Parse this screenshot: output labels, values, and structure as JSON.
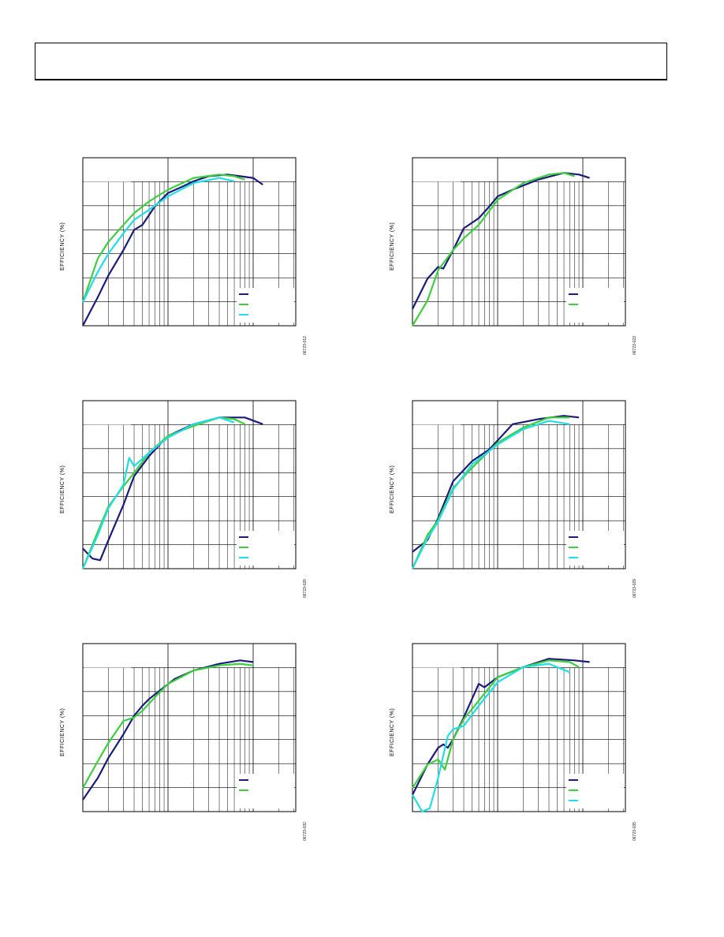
{
  "colors": {
    "navy": "#1c1c7a",
    "green": "#3ecf3e",
    "cyan": "#22dde8"
  },
  "chart_data": [
    {
      "type": "line",
      "x_scale": "log",
      "ylabel": "EFFICIENCY (%)",
      "figure_code": "06723-012",
      "series": [
        {
          "color": "navy",
          "points": [
            [
              1,
              0.0
            ],
            [
              1.5,
              0.17
            ],
            [
              2,
              0.3
            ],
            [
              3,
              0.45
            ],
            [
              4,
              0.57
            ],
            [
              5,
              0.6
            ],
            [
              7,
              0.71
            ],
            [
              10,
              0.79
            ],
            [
              15,
              0.83
            ],
            [
              20,
              0.86
            ],
            [
              30,
              0.89
            ],
            [
              50,
              0.9
            ],
            [
              70,
              0.89
            ],
            [
              100,
              0.88
            ],
            [
              130,
              0.84
            ]
          ]
        },
        {
          "color": "green",
          "points": [
            [
              1,
              0.14
            ],
            [
              1.5,
              0.4
            ],
            [
              2,
              0.5
            ],
            [
              3,
              0.6
            ],
            [
              4,
              0.67
            ],
            [
              6,
              0.74
            ],
            [
              10,
              0.81
            ],
            [
              20,
              0.88
            ],
            [
              40,
              0.9
            ],
            [
              60,
              0.89
            ],
            [
              80,
              0.87
            ]
          ]
        },
        {
          "color": "cyan",
          "points": [
            [
              1,
              0.14
            ],
            [
              1.5,
              0.32
            ],
            [
              2,
              0.43
            ],
            [
              3,
              0.55
            ],
            [
              4,
              0.63
            ],
            [
              6,
              0.69
            ],
            [
              10,
              0.77
            ],
            [
              20,
              0.85
            ],
            [
              40,
              0.88
            ],
            [
              60,
              0.86
            ]
          ]
        }
      ]
    },
    {
      "type": "line",
      "x_scale": "log",
      "ylabel": "EFFICIENCY (%)",
      "figure_code": "06723-023",
      "series": [
        {
          "color": "navy",
          "points": [
            [
              1,
              0.1
            ],
            [
              1.5,
              0.28
            ],
            [
              2,
              0.35
            ],
            [
              2.3,
              0.34
            ],
            [
              3,
              0.45
            ],
            [
              4,
              0.58
            ],
            [
              6,
              0.64
            ],
            [
              8,
              0.71
            ],
            [
              10,
              0.77
            ],
            [
              15,
              0.81
            ],
            [
              30,
              0.87
            ],
            [
              60,
              0.91
            ],
            [
              90,
              0.9
            ],
            [
              120,
              0.88
            ]
          ]
        },
        {
          "color": "green",
          "points": [
            [
              1,
              0.0
            ],
            [
              1.5,
              0.15
            ],
            [
              2,
              0.33
            ],
            [
              3,
              0.45
            ],
            [
              4,
              0.52
            ],
            [
              6,
              0.6
            ],
            [
              10,
              0.75
            ],
            [
              20,
              0.85
            ],
            [
              40,
              0.9
            ],
            [
              60,
              0.91
            ],
            [
              80,
              0.89
            ]
          ]
        }
      ]
    },
    {
      "type": "line",
      "x_scale": "log",
      "ylabel": "EFFICIENCY (%)",
      "figure_code": "06723-026",
      "series": [
        {
          "color": "navy",
          "points": [
            [
              1,
              0.12
            ],
            [
              1.3,
              0.06
            ],
            [
              1.6,
              0.05
            ],
            [
              2,
              0.17
            ],
            [
              3,
              0.38
            ],
            [
              4,
              0.55
            ],
            [
              6,
              0.67
            ],
            [
              10,
              0.79
            ],
            [
              20,
              0.86
            ],
            [
              40,
              0.9
            ],
            [
              80,
              0.9
            ],
            [
              130,
              0.86
            ]
          ]
        },
        {
          "color": "green",
          "points": [
            [
              1,
              0.0
            ],
            [
              1.5,
              0.22
            ],
            [
              2,
              0.37
            ],
            [
              3,
              0.49
            ],
            [
              4,
              0.57
            ],
            [
              6,
              0.69
            ],
            [
              10,
              0.79
            ],
            [
              20,
              0.85
            ],
            [
              40,
              0.9
            ],
            [
              60,
              0.89
            ],
            [
              80,
              0.86
            ]
          ]
        },
        {
          "color": "cyan",
          "points": [
            [
              1,
              0.0
            ],
            [
              1.5,
              0.2
            ],
            [
              2,
              0.36
            ],
            [
              3,
              0.5
            ],
            [
              3.5,
              0.66
            ],
            [
              4,
              0.61
            ],
            [
              6,
              0.69
            ],
            [
              10,
              0.78
            ],
            [
              20,
              0.86
            ],
            [
              40,
              0.9
            ],
            [
              60,
              0.87
            ]
          ]
        }
      ]
    },
    {
      "type": "line",
      "x_scale": "log",
      "ylabel": "EFFICIENCY (%)",
      "figure_code": "06723-029",
      "series": [
        {
          "color": "navy",
          "points": [
            [
              1,
              0.1
            ],
            [
              1.5,
              0.17
            ],
            [
              2,
              0.3
            ],
            [
              3,
              0.52
            ],
            [
              5,
              0.64
            ],
            [
              8,
              0.71
            ],
            [
              15,
              0.86
            ],
            [
              30,
              0.89
            ],
            [
              60,
              0.91
            ],
            [
              90,
              0.9
            ]
          ]
        },
        {
          "color": "green",
          "points": [
            [
              1,
              0.0
            ],
            [
              1.5,
              0.2
            ],
            [
              2,
              0.29
            ],
            [
              3,
              0.48
            ],
            [
              5,
              0.6
            ],
            [
              10,
              0.75
            ],
            [
              20,
              0.84
            ],
            [
              40,
              0.9
            ],
            [
              70,
              0.9
            ]
          ]
        },
        {
          "color": "cyan",
          "points": [
            [
              1,
              0.0
            ],
            [
              1.5,
              0.18
            ],
            [
              2,
              0.28
            ],
            [
              3,
              0.47
            ],
            [
              5,
              0.62
            ],
            [
              10,
              0.74
            ],
            [
              20,
              0.83
            ],
            [
              40,
              0.88
            ],
            [
              70,
              0.86
            ]
          ]
        }
      ]
    },
    {
      "type": "line",
      "x_scale": "log",
      "ylabel": "EFFICIENCY (%)",
      "figure_code": "06723-032",
      "series": [
        {
          "color": "navy",
          "points": [
            [
              1,
              0.07
            ],
            [
              1.5,
              0.2
            ],
            [
              2,
              0.32
            ],
            [
              3,
              0.46
            ],
            [
              4,
              0.57
            ],
            [
              5,
              0.63
            ],
            [
              6,
              0.67
            ],
            [
              8,
              0.72
            ],
            [
              12,
              0.79
            ],
            [
              20,
              0.84
            ],
            [
              40,
              0.88
            ],
            [
              70,
              0.9
            ],
            [
              100,
              0.89
            ]
          ]
        },
        {
          "color": "green",
          "points": [
            [
              1,
              0.14
            ],
            [
              1.5,
              0.3
            ],
            [
              2,
              0.41
            ],
            [
              3,
              0.54
            ],
            [
              4,
              0.56
            ],
            [
              5,
              0.6
            ],
            [
              7,
              0.68
            ],
            [
              10,
              0.76
            ],
            [
              20,
              0.84
            ],
            [
              40,
              0.87
            ],
            [
              70,
              0.88
            ],
            [
              100,
              0.87
            ]
          ]
        }
      ]
    },
    {
      "type": "line",
      "x_scale": "log",
      "ylabel": "EFFICIENCY (%)",
      "figure_code": "06723-035",
      "series": [
        {
          "color": "navy",
          "points": [
            [
              1,
              0.1
            ],
            [
              1.5,
              0.28
            ],
            [
              2,
              0.38
            ],
            [
              2.3,
              0.4
            ],
            [
              2.6,
              0.38
            ],
            [
              3,
              0.43
            ],
            [
              4,
              0.56
            ],
            [
              6,
              0.76
            ],
            [
              7,
              0.74
            ],
            [
              10,
              0.8
            ],
            [
              20,
              0.86
            ],
            [
              40,
              0.91
            ],
            [
              80,
              0.9
            ],
            [
              120,
              0.89
            ]
          ]
        },
        {
          "color": "green",
          "points": [
            [
              1,
              0.14
            ],
            [
              1.5,
              0.28
            ],
            [
              2,
              0.31
            ],
            [
              2.4,
              0.25
            ],
            [
              3,
              0.43
            ],
            [
              4,
              0.55
            ],
            [
              6,
              0.66
            ],
            [
              10,
              0.8
            ],
            [
              20,
              0.86
            ],
            [
              40,
              0.9
            ],
            [
              70,
              0.89
            ],
            [
              90,
              0.86
            ]
          ]
        },
        {
          "color": "cyan",
          "points": [
            [
              1,
              0.1
            ],
            [
              1.3,
              0.0
            ],
            [
              1.6,
              0.02
            ],
            [
              2,
              0.2
            ],
            [
              2.6,
              0.45
            ],
            [
              3,
              0.49
            ],
            [
              4,
              0.51
            ],
            [
              6,
              0.63
            ],
            [
              10,
              0.77
            ],
            [
              20,
              0.86
            ],
            [
              40,
              0.88
            ],
            [
              70,
              0.83
            ]
          ]
        }
      ]
    }
  ]
}
